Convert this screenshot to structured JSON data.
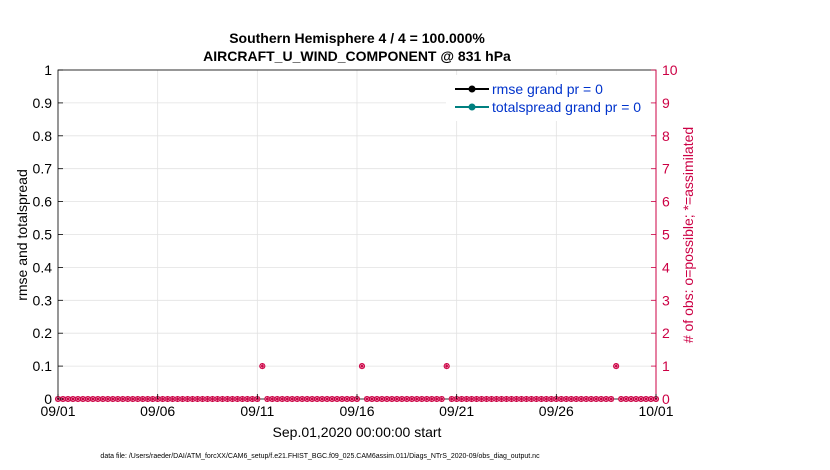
{
  "chart_data": {
    "type": "line",
    "title": "Southern Hemisphere 4 / 4 = 100.000%",
    "subtitle": "AIRCRAFT_U_WIND_COMPONENT @ 831 hPa",
    "xlabel": "Sep.01,2020 00:00:00 start",
    "ylabel_left": "rmse and totalspread",
    "ylabel_right": "# of obs: o=possible; *=assimilated",
    "x_ticks": [
      "09/01",
      "09/06",
      "09/11",
      "09/16",
      "09/21",
      "09/26",
      "10/01"
    ],
    "y_left_ticks": [
      "0",
      "0.1",
      "0.2",
      "0.3",
      "0.4",
      "0.5",
      "0.6",
      "0.7",
      "0.8",
      "0.9",
      "1"
    ],
    "y_right_ticks": [
      "0",
      "1",
      "2",
      "3",
      "4",
      "5",
      "6",
      "7",
      "8",
      "9",
      "10"
    ],
    "ylim_left": [
      0,
      1
    ],
    "ylim_right": [
      0,
      10
    ],
    "xlim_days": [
      0,
      30
    ],
    "grid": true,
    "legend_position": "top-right",
    "series": [
      {
        "name": "rmse grand pr = 0",
        "color": "#000000",
        "marker": "filled-circle"
      },
      {
        "name": "totalspread grand pr = 0",
        "color": "#008080",
        "marker": "filled-circle"
      }
    ],
    "obs_counts": {
      "color": "#cc0044",
      "interval_days": 0.25,
      "zero_count_points_per_day": 4,
      "nonzero": [
        {
          "day": 10.25,
          "possible": 1,
          "assimilated": 1
        },
        {
          "day": 15.25,
          "possible": 1,
          "assimilated": 1
        },
        {
          "day": 19.5,
          "possible": 1,
          "assimilated": 1
        },
        {
          "day": 28.0,
          "possible": 1,
          "assimilated": 1
        }
      ]
    },
    "footnote": "data file: /Users/raeder/DAI/ATM_forcXX/CAM6_setup/f.e21.FHIST_BGC.f09_025.CAM6assim.011/Diags_NTrS_2020-09/obs_diag_output.nc"
  }
}
